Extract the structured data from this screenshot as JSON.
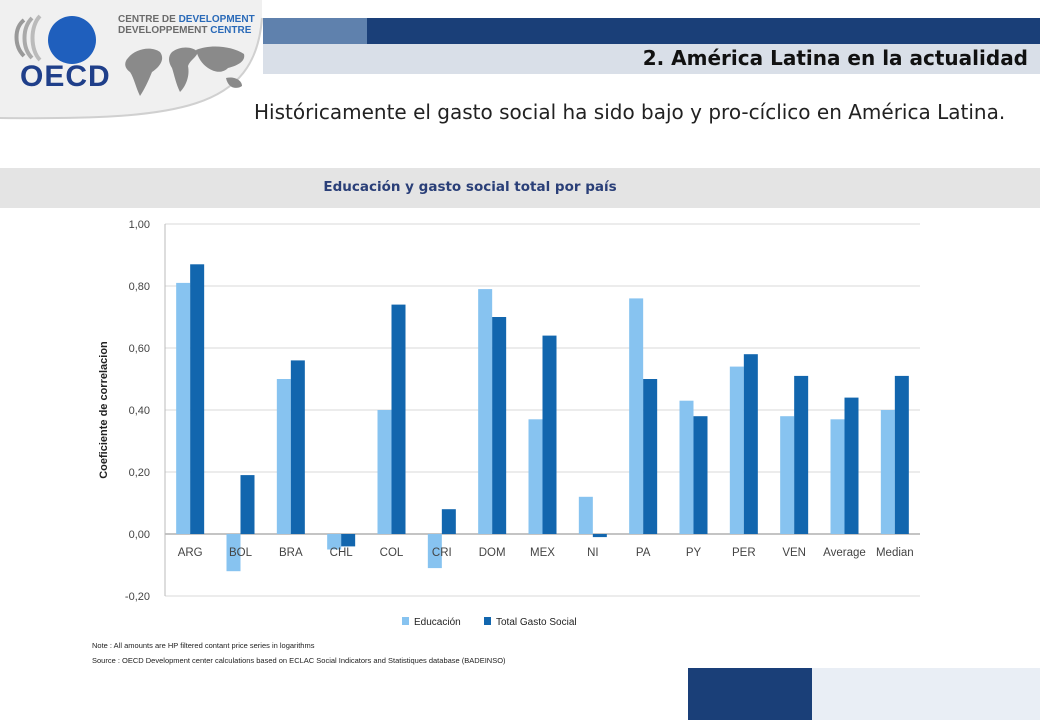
{
  "header": {
    "logo_text": "OECD",
    "dev_centre_line1_a": "CENTRE DE ",
    "dev_centre_line1_b": "DEVELOPMENT",
    "dev_centre_line2_a": "DEVELOPPEMENT ",
    "dev_centre_line2_b": "CENTRE",
    "section_title": "2. América Latina en la actualidad"
  },
  "main_text": "Históricamente el gasto social ha sido bajo y pro-cíclico en América Latina.",
  "chart_data": {
    "type": "bar",
    "title": "Educación y gasto social total por país",
    "ylabel": "Coeficiente de correlacion",
    "ylim": [
      -0.2,
      1.0
    ],
    "yticks": [
      "-0,20",
      "0,00",
      "0,20",
      "0,40",
      "0,60",
      "0,80",
      "1,00"
    ],
    "ytick_values": [
      -0.2,
      0.0,
      0.2,
      0.4,
      0.6,
      0.8,
      1.0
    ],
    "categories": [
      "ARG",
      "BOL",
      "BRA",
      "CHL",
      "COL",
      "CRI",
      "DOM",
      "MEX",
      "NI",
      "PA",
      "PY",
      "PER",
      "VEN",
      "Average",
      "Median"
    ],
    "series": [
      {
        "name": "Educación",
        "color": "#87c3f0",
        "values": [
          0.81,
          -0.12,
          0.5,
          -0.05,
          0.4,
          -0.11,
          0.79,
          0.37,
          0.12,
          0.76,
          0.43,
          0.54,
          0.38,
          0.37,
          0.4
        ]
      },
      {
        "name": "Total Gasto Social",
        "color": "#1266ae",
        "values": [
          0.87,
          0.19,
          0.56,
          -0.04,
          0.74,
          0.08,
          0.7,
          0.64,
          -0.01,
          0.5,
          0.38,
          0.58,
          0.51,
          0.44,
          0.51
        ]
      }
    ],
    "grid": true,
    "legend_position": "bottom"
  },
  "notes": {
    "note": "Note : All amounts are HP filtered contant price series in logarithms",
    "source": "Source : OECD Development center calculations based on ECLAC Social Indicators and Statistiques database (BADEINSO)"
  }
}
